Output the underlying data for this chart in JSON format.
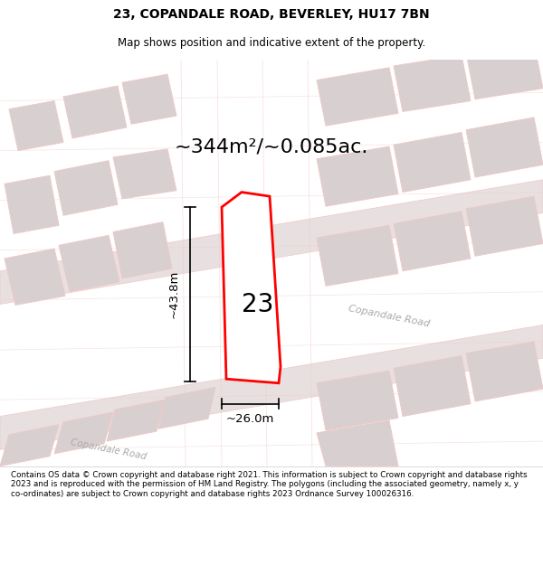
{
  "title_line1": "23, COPANDALE ROAD, BEVERLEY, HU17 7BN",
  "title_line2": "Map shows position and indicative extent of the property.",
  "area_text": "~344m²/~0.085ac.",
  "dim_height": "~43.8m",
  "dim_width": "~26.0m",
  "property_number": "23",
  "footer_text": "Contains OS data © Crown copyright and database right 2021. This information is subject to Crown copyright and database rights 2023 and is reproduced with the permission of HM Land Registry. The polygons (including the associated geometry, namely x, y co-ordinates) are subject to Crown copyright and database rights 2023 Ordnance Survey 100026316.",
  "bg_color": "#f5f0f0",
  "map_bg": "#ffffff",
  "road_color": "#f0c8c8",
  "building_color": "#d8d0d0",
  "plot_color": "#ff0000",
  "plot_fill": "#ffffff",
  "text_color": "#000000",
  "title_bg": "#ffffff",
  "footer_bg": "#ffffff"
}
